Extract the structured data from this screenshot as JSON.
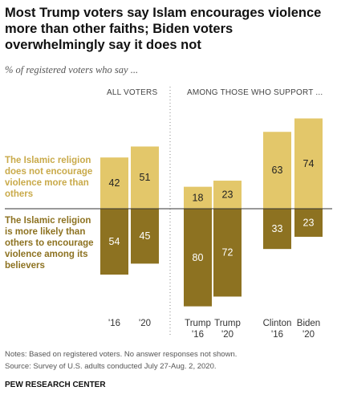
{
  "title": "Most Trump voters say Islam encourages violence more than other faiths; Biden voters overwhelmingly say it does not",
  "subtitle": "% of registered voters who say ...",
  "headers": {
    "all_voters": "ALL VOTERS",
    "supporters": "AMONG THOSE WHO SUPPORT ..."
  },
  "category_labels": {
    "not_more": "The Islamic religion does not encourage violence more than others",
    "more": "The Islamic religion is more likely than others to encourage violence among its believers"
  },
  "notes": "Notes: Based on registered voters. No answer responses not shown.",
  "source": "Source: Survey of U.S. adults conducted July 27-Aug. 2, 2020.",
  "brand": "PEW RESEARCH CENTER",
  "colors": {
    "not_more": "#e3c76a",
    "more": "#8d7221",
    "not_more_text": "#c9aa4a"
  },
  "chart_data": {
    "type": "bar",
    "categories": [
      [
        "'16"
      ],
      [
        "'20"
      ],
      [
        "Trump",
        "'16"
      ],
      [
        "Trump",
        "'20"
      ],
      [
        "Clinton",
        "'16"
      ],
      [
        "Biden",
        "'20"
      ]
    ],
    "series": [
      {
        "name": "The Islamic religion does not encourage violence more than others",
        "values": [
          42,
          51,
          18,
          23,
          63,
          74
        ]
      },
      {
        "name": "The Islamic religion is more likely than others to encourage violence among its believers",
        "values": [
          54,
          45,
          80,
          72,
          33,
          23
        ]
      }
    ]
  }
}
